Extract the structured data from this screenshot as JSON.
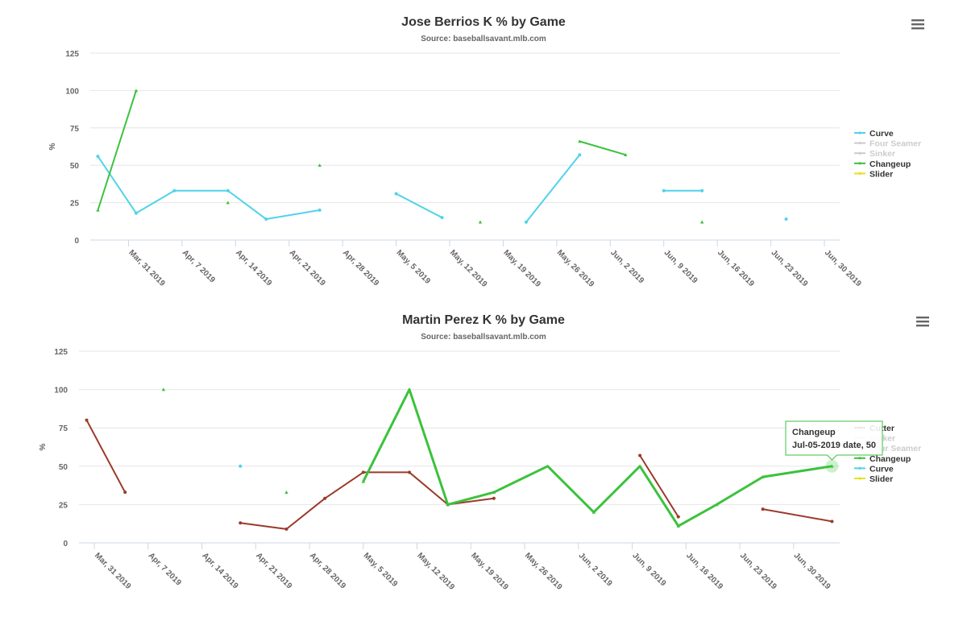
{
  "chart_data": [
    {
      "type": "line",
      "title": "Jose Berrios K % by Game",
      "subtitle": "Source: baseballsavant.mlb.com",
      "xlabel": "",
      "ylabel": "%",
      "ylim": [
        0,
        125
      ],
      "yticks": [
        0,
        25,
        50,
        75,
        100,
        125
      ],
      "xlim": [
        "2019-03-26",
        "2019-07-02"
      ],
      "xticks": [
        "2019-03-31",
        "2019-04-07",
        "2019-04-14",
        "2019-04-21",
        "2019-04-28",
        "2019-05-05",
        "2019-05-12",
        "2019-05-19",
        "2019-05-26",
        "2019-06-02",
        "2019-06-09",
        "2019-06-16",
        "2019-06-23",
        "2019-06-30"
      ],
      "xtick_labels": [
        "Mar, 31 2019",
        "Apr, 7 2019",
        "Apr, 14 2019",
        "Apr, 21 2019",
        "Apr, 28 2019",
        "May, 5 2019",
        "May, 12 2019",
        "May, 19 2019",
        "May, 26 2019",
        "Jun, 2 2019",
        "Jun, 9 2019",
        "Jun, 16 2019",
        "Jun, 23 2019",
        "Jun, 30 2019"
      ],
      "grid": true,
      "legend_position": "right",
      "series": [
        {
          "name": "Curve",
          "color": "#4fd3ea",
          "visible": true,
          "points": [
            [
              "2019-03-27",
              56
            ],
            [
              "2019-04-01",
              18
            ],
            [
              "2019-04-06",
              33
            ],
            [
              "2019-04-13",
              33
            ],
            [
              "2019-04-18",
              14
            ],
            [
              "2019-04-25",
              20
            ],
            null,
            [
              "2019-05-05",
              31
            ],
            [
              "2019-05-11",
              15
            ],
            null,
            [
              "2019-05-22",
              12
            ],
            [
              "2019-05-29",
              57
            ],
            null,
            [
              "2019-06-09",
              33
            ],
            [
              "2019-06-14",
              33
            ],
            null,
            [
              "2019-06-25",
              14
            ]
          ]
        },
        {
          "name": "Four Seamer",
          "color": "#cccccc",
          "visible": false,
          "points": []
        },
        {
          "name": "Sinker",
          "color": "#cccccc",
          "visible": false,
          "points": []
        },
        {
          "name": "Changeup",
          "color": "#3cc23c",
          "visible": true,
          "points": [
            [
              "2019-03-27",
              20
            ],
            [
              "2019-04-01",
              100
            ],
            null,
            [
              "2019-04-13",
              25
            ],
            null,
            [
              "2019-04-25",
              50
            ],
            null,
            [
              "2019-05-16",
              12
            ],
            null,
            [
              "2019-05-29",
              66
            ],
            [
              "2019-06-04",
              57
            ],
            null,
            [
              "2019-06-14",
              12
            ]
          ]
        },
        {
          "name": "Slider",
          "color": "#e6e020",
          "visible": true,
          "points": []
        }
      ]
    },
    {
      "type": "line",
      "title": "Martin Perez K % by Game",
      "subtitle": "Source: baseballsavant.mlb.com",
      "xlabel": "",
      "ylabel": "%",
      "ylim": [
        0,
        125
      ],
      "yticks": [
        0,
        25,
        50,
        75,
        100,
        125
      ],
      "xlim": [
        "2019-03-29",
        "2019-07-06"
      ],
      "xticks": [
        "2019-03-31",
        "2019-04-07",
        "2019-04-14",
        "2019-04-21",
        "2019-04-28",
        "2019-05-05",
        "2019-05-12",
        "2019-05-19",
        "2019-05-26",
        "2019-06-02",
        "2019-06-09",
        "2019-06-16",
        "2019-06-23",
        "2019-06-30"
      ],
      "xtick_labels": [
        "Mar, 31 2019",
        "Apr, 7 2019",
        "Apr, 14 2019",
        "Apr, 21 2019",
        "Apr, 28 2019",
        "May, 5 2019",
        "May, 12 2019",
        "May, 19 2019",
        "May, 26 2019",
        "Jun, 2 2019",
        "Jun, 9 2019",
        "Jun, 16 2019",
        "Jun, 23 2019",
        "Jun, 30 2019"
      ],
      "grid": true,
      "legend_position": "right",
      "series": [
        {
          "name": "Cutter",
          "color": "#9a3b2b",
          "visible": true,
          "points": [
            [
              "2019-03-30",
              80
            ],
            [
              "2019-04-04",
              33
            ],
            null,
            [
              "2019-04-19",
              13
            ],
            [
              "2019-04-25",
              9
            ],
            [
              "2019-04-30",
              29
            ],
            [
              "2019-05-05",
              46
            ],
            [
              "2019-05-11",
              46
            ],
            [
              "2019-05-16",
              25
            ],
            [
              "2019-05-22",
              29
            ],
            null,
            [
              "2019-06-10",
              57
            ],
            [
              "2019-06-15",
              17
            ],
            null,
            [
              "2019-06-26",
              22
            ],
            [
              "2019-07-05",
              14
            ]
          ]
        },
        {
          "name": "Sinker",
          "color": "#cccccc",
          "visible": false,
          "points": []
        },
        {
          "name": "Four Seamer",
          "color": "#cccccc",
          "visible": false,
          "points": []
        },
        {
          "name": "Changeup",
          "color": "#3cc23c",
          "visible": true,
          "hovered": true,
          "points": [
            [
              "2019-04-09",
              100
            ],
            null,
            [
              "2019-04-25",
              33
            ],
            null,
            [
              "2019-05-05",
              40
            ],
            [
              "2019-05-11",
              100
            ],
            [
              "2019-05-16",
              25
            ],
            [
              "2019-05-22",
              33
            ],
            [
              "2019-05-29",
              50
            ],
            [
              "2019-06-04",
              20
            ],
            [
              "2019-06-10",
              50
            ],
            [
              "2019-06-15",
              11
            ],
            [
              "2019-06-20",
              25
            ],
            [
              "2019-06-26",
              43
            ],
            [
              "2019-07-05",
              50
            ]
          ]
        },
        {
          "name": "Curve",
          "color": "#4fd3ea",
          "visible": true,
          "points": [
            [
              "2019-04-19",
              50
            ]
          ]
        },
        {
          "name": "Slider",
          "color": "#e6e020",
          "visible": true,
          "points": []
        }
      ],
      "tooltip": {
        "series": "Changeup",
        "line1": "Changeup",
        "line2": "Jul-05-2019 date, 50",
        "date": "2019-07-05",
        "value": 50
      }
    }
  ],
  "icons": {
    "menu": "hamburger-menu-icon"
  }
}
